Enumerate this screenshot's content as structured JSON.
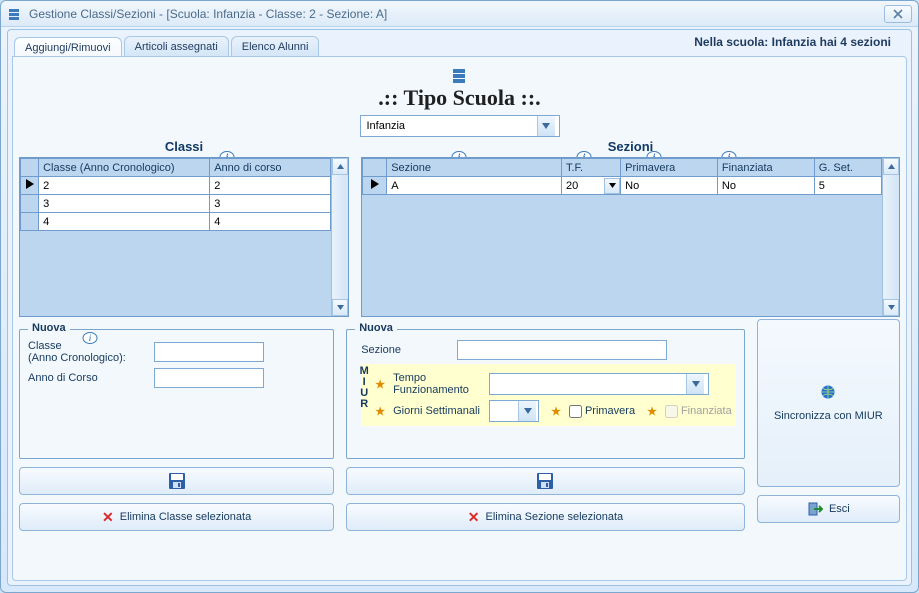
{
  "window": {
    "title": "Gestione Classi/Sezioni - [Scuola: Infanzia - Classe: 2 - Sezione: A]"
  },
  "tabs": [
    {
      "label": "Aggiungi/Rimuovi",
      "active": true
    },
    {
      "label": "Articoli assegnati",
      "active": false
    },
    {
      "label": "Elenco Alunni",
      "active": false
    }
  ],
  "statusText": "Nella scuola: Infanzia hai 4 sezioni",
  "heading": ".:: Tipo Scuola ::.",
  "schoolSelect": {
    "value": "Infanzia"
  },
  "classi": {
    "title": "Classi",
    "columns": [
      "Classe (Anno Cronologico)",
      "Anno di corso"
    ],
    "rows": [
      {
        "selected": true,
        "cells": [
          "2",
          "2"
        ]
      },
      {
        "selected": false,
        "cells": [
          "3",
          "3"
        ]
      },
      {
        "selected": false,
        "cells": [
          "4",
          "4"
        ]
      }
    ]
  },
  "sezioni": {
    "title": "Sezioni",
    "columns": [
      "Sezione",
      "T.F.",
      "Primavera",
      "Finanziata",
      "G. Set."
    ],
    "rows": [
      {
        "selected": true,
        "cells": [
          "A",
          "20",
          "No",
          "No",
          "5"
        ],
        "dropdownCol": 1
      }
    ]
  },
  "nuovaClasse": {
    "legend": "Nuova",
    "label1": "Classe\n(Anno Cronologico):",
    "label2": "Anno di Corso",
    "val1": "",
    "val2": ""
  },
  "nuovaSezione": {
    "legend": "Nuova",
    "labelSezione": "Sezione",
    "valSezione": "",
    "miurLabel": "MIUR",
    "labelTempo": "Tempo Funzionamento",
    "valTempo": "",
    "labelGiorni": "Giorni Settimanali",
    "valGiorni": "",
    "chkPrimavera": "Primavera",
    "chkFinanziata": "Finanziata"
  },
  "buttons": {
    "eliminaClasse": "Elimina Classe selezionata",
    "eliminaSezione": "Elimina Sezione selezionata",
    "sync": "Sincronizza con MIUR",
    "esci": "Esci"
  },
  "colors": {
    "accent": "#7ba7ce",
    "panel": "#f3f8fd",
    "gridHeader": "#bcd6ef",
    "miurBg": "#ffffcf",
    "deleteX": "#d92b2b"
  }
}
